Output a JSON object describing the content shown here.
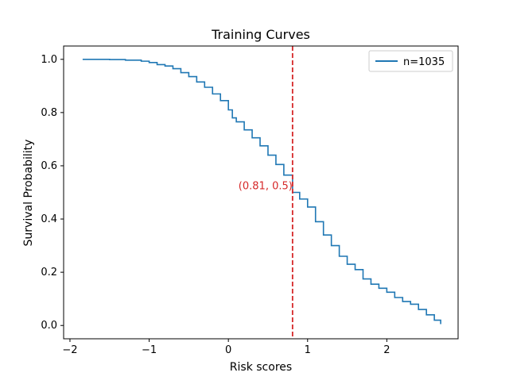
{
  "chart_data": {
    "type": "line",
    "title": "Training Curves",
    "xlabel": "Risk scores",
    "ylabel": "Survival Probability",
    "xlim": [
      -2.08,
      2.9
    ],
    "ylim": [
      -0.05,
      1.05
    ],
    "xticks": [
      -2,
      -1,
      0,
      1,
      2
    ],
    "xtick_labels": [
      "−2",
      "−1",
      "0",
      "1",
      "2"
    ],
    "yticks": [
      0.0,
      0.2,
      0.4,
      0.6,
      0.8,
      1.0
    ],
    "ytick_labels": [
      "0.0",
      "0.2",
      "0.4",
      "0.6",
      "0.8",
      "1.0"
    ],
    "grid": false,
    "legend_position": "upper-right",
    "series": [
      {
        "name": "n=1035",
        "color": "#1f77b4",
        "x": [
          -1.84,
          -1.5,
          -1.3,
          -1.1,
          -1.0,
          -0.9,
          -0.8,
          -0.7,
          -0.6,
          -0.5,
          -0.4,
          -0.3,
          -0.2,
          -0.1,
          0.0,
          0.05,
          0.1,
          0.2,
          0.3,
          0.4,
          0.5,
          0.6,
          0.7,
          0.81,
          0.9,
          1.0,
          1.1,
          1.2,
          1.3,
          1.4,
          1.5,
          1.6,
          1.7,
          1.8,
          1.9,
          2.0,
          2.1,
          2.2,
          2.3,
          2.4,
          2.5,
          2.6,
          2.68
        ],
        "y": [
          1.0,
          0.999,
          0.997,
          0.993,
          0.988,
          0.98,
          0.975,
          0.965,
          0.95,
          0.935,
          0.915,
          0.895,
          0.87,
          0.845,
          0.81,
          0.78,
          0.765,
          0.735,
          0.705,
          0.675,
          0.64,
          0.605,
          0.565,
          0.5,
          0.475,
          0.445,
          0.39,
          0.34,
          0.3,
          0.26,
          0.23,
          0.21,
          0.175,
          0.155,
          0.14,
          0.125,
          0.105,
          0.09,
          0.08,
          0.06,
          0.04,
          0.02,
          0.005
        ]
      }
    ],
    "vline": {
      "x": 0.81,
      "color": "#d62728",
      "style": "dashed"
    },
    "annotation": {
      "text": "(0.81, 0.5)",
      "x": 0.81,
      "y": 0.5,
      "color": "#d62728"
    }
  }
}
